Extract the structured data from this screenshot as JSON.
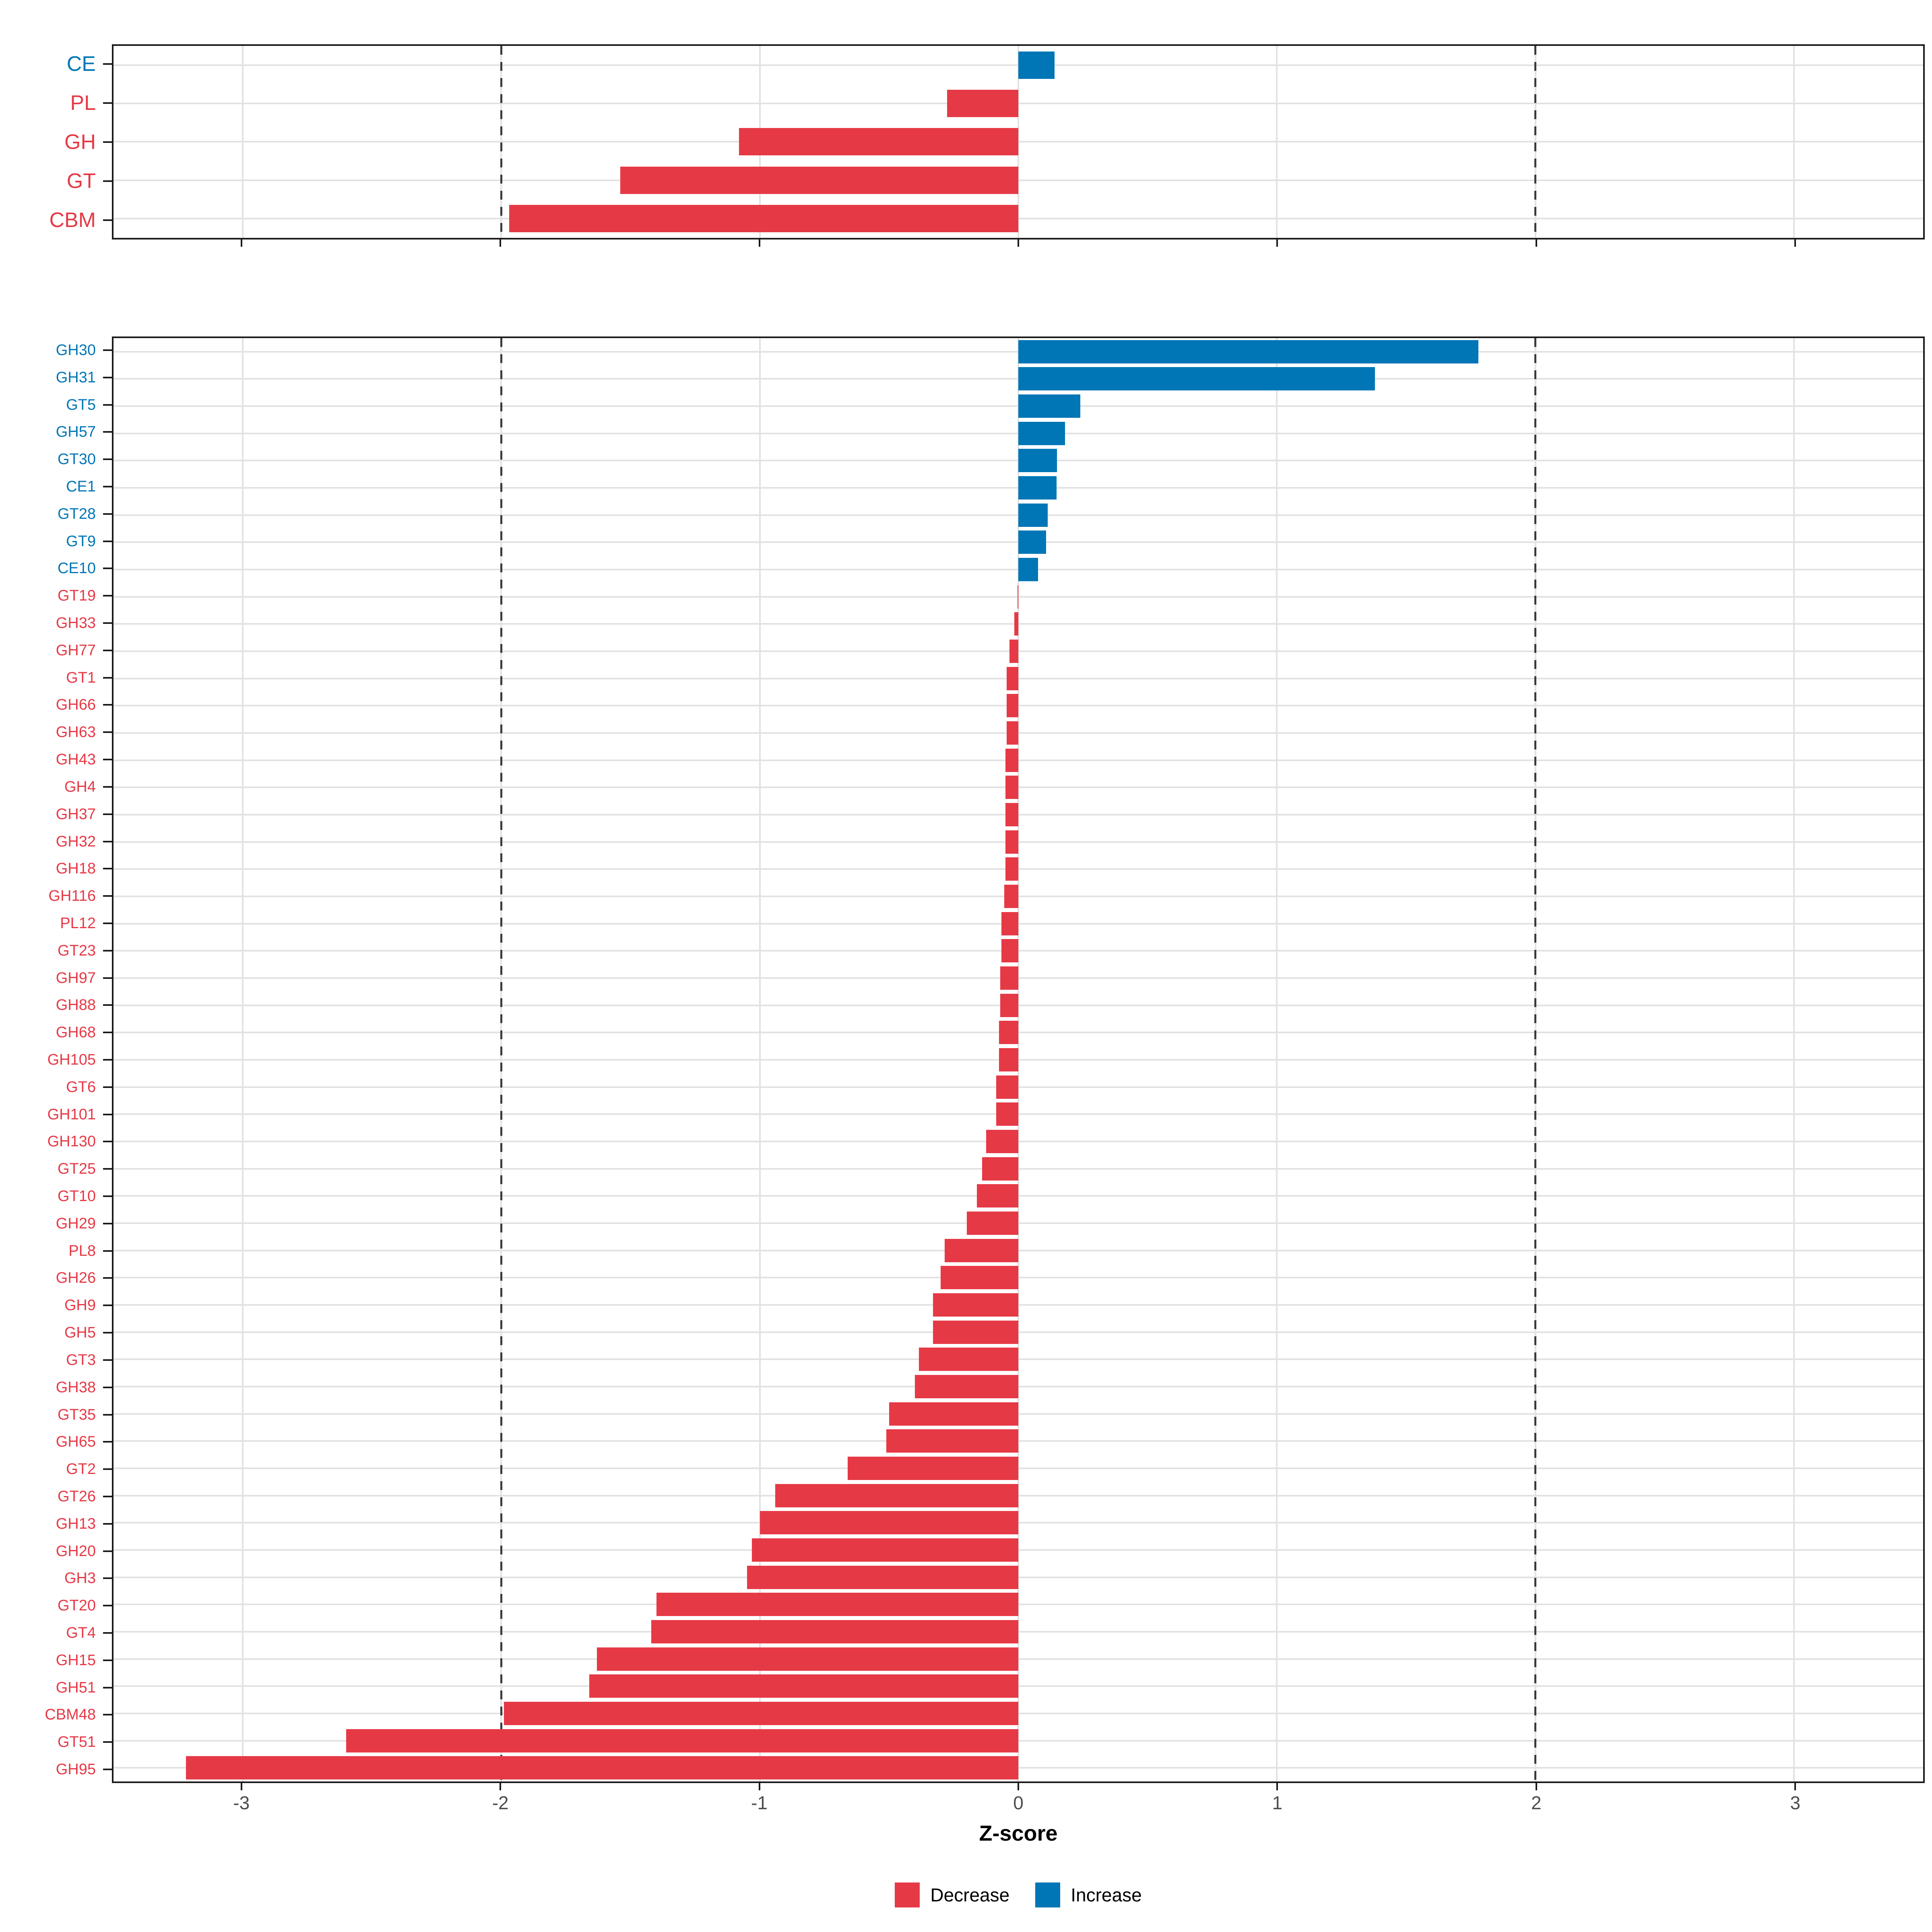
{
  "chart_data": {
    "type": "bar",
    "orientation": "horizontal",
    "title": "",
    "xlabel": "Z-score",
    "ylabel": "",
    "xlim": [
      -3.5,
      3.5
    ],
    "x_ticks": [
      -3,
      -2,
      -1,
      0,
      1,
      2,
      3
    ],
    "reference_lines": [
      -2,
      2
    ],
    "grid": true,
    "legend_position": "bottom",
    "colors": {
      "decrease": "#E63946",
      "increase": "#0076B6"
    },
    "legend": [
      {
        "label": "Decrease",
        "key": "decrease"
      },
      {
        "label": "Increase",
        "key": "increase"
      }
    ],
    "panels": [
      {
        "name": "class-summary",
        "categories": [
          "CE",
          "PL",
          "GH",
          "GT",
          "CBM"
        ],
        "values": [
          0.14,
          -0.275,
          -1.08,
          -1.54,
          -1.97
        ]
      },
      {
        "name": "family-detail",
        "categories": [
          "GH30",
          "GH31",
          "GT5",
          "GH57",
          "GT30",
          "CE1",
          "GT28",
          "GT9",
          "CE10",
          "GT19",
          "GH33",
          "GH77",
          "GT1",
          "GH66",
          "GH63",
          "GH43",
          "GH4",
          "GH37",
          "GH32",
          "GH18",
          "GH116",
          "PL12",
          "GT23",
          "GH97",
          "GH88",
          "GH68",
          "GH105",
          "GT6",
          "GH101",
          "GH130",
          "GT25",
          "GT10",
          "GH29",
          "PL8",
          "GH26",
          "GH9",
          "GH5",
          "GT3",
          "GH38",
          "GT35",
          "GH65",
          "GT2",
          "GT26",
          "GH13",
          "GH20",
          "GH3",
          "GT20",
          "GT4",
          "GH15",
          "GH51",
          "CBM48",
          "GT51",
          "GH95"
        ],
        "values": [
          1.78,
          1.38,
          0.24,
          0.18,
          0.15,
          0.148,
          0.113,
          0.107,
          0.077,
          -0.003,
          -0.015,
          -0.035,
          -0.045,
          -0.045,
          -0.045,
          -0.05,
          -0.05,
          -0.05,
          -0.05,
          -0.05,
          -0.055,
          -0.065,
          -0.065,
          -0.07,
          -0.07,
          -0.075,
          -0.075,
          -0.085,
          -0.085,
          -0.125,
          -0.14,
          -0.16,
          -0.2,
          -0.285,
          -0.3,
          -0.33,
          -0.33,
          -0.385,
          -0.4,
          -0.5,
          -0.51,
          -0.66,
          -0.94,
          -1.0,
          -1.03,
          -1.05,
          -1.4,
          -1.42,
          -1.63,
          -1.66,
          -1.99,
          -2.6,
          -3.22
        ]
      }
    ]
  },
  "layout_text": {
    "x_axis_title": "Z-score"
  }
}
